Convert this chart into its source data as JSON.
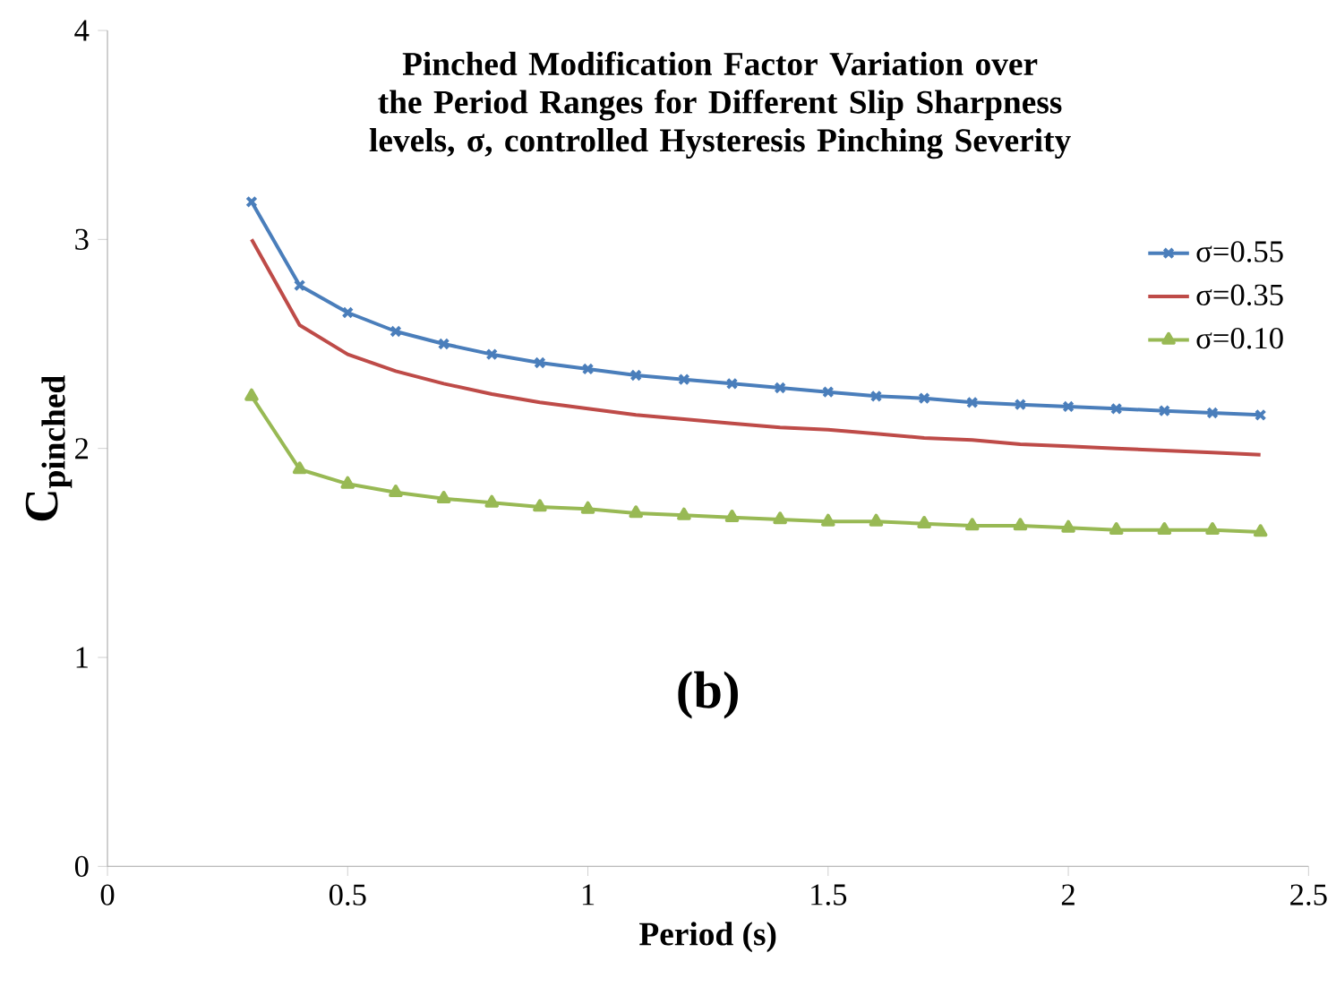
{
  "chart_data": {
    "type": "line",
    "title": "Pinched Modification Factor Variation over the Period Ranges for Different Slip Sharpness levels, σ, controlled Hysteresis Pinching Severity",
    "xlabel": "Period (s)",
    "ylabel": "C$_{pinched}$",
    "annotations": [
      "(b)"
    ],
    "x": [
      0.3,
      0.4,
      0.5,
      0.6,
      0.7,
      0.8,
      0.9,
      1.0,
      1.1,
      1.2,
      1.3,
      1.4,
      1.5,
      1.6,
      1.7,
      1.8,
      1.9,
      2.0,
      2.1,
      2.2,
      2.3,
      2.4
    ],
    "series": [
      {
        "name": "σ=0.55",
        "color": "#4a7ebb",
        "marker": "cross",
        "values": [
          3.18,
          2.78,
          2.65,
          2.56,
          2.5,
          2.45,
          2.41,
          2.38,
          2.35,
          2.33,
          2.31,
          2.29,
          2.27,
          2.25,
          2.24,
          2.22,
          2.21,
          2.2,
          2.19,
          2.18,
          2.17,
          2.16
        ]
      },
      {
        "name": "σ=0.35",
        "color": "#be4b48",
        "marker": "none",
        "values": [
          3.0,
          2.59,
          2.45,
          2.37,
          2.31,
          2.26,
          2.22,
          2.19,
          2.16,
          2.14,
          2.12,
          2.1,
          2.09,
          2.07,
          2.05,
          2.04,
          2.02,
          2.01,
          2.0,
          1.99,
          1.98,
          1.97
        ]
      },
      {
        "name": "σ=0.10",
        "color": "#98b954",
        "marker": "triangle",
        "values": [
          2.25,
          1.9,
          1.83,
          1.79,
          1.76,
          1.74,
          1.72,
          1.71,
          1.69,
          1.68,
          1.67,
          1.66,
          1.65,
          1.65,
          1.64,
          1.63,
          1.63,
          1.62,
          1.61,
          1.61,
          1.61,
          1.6
        ]
      }
    ],
    "xlim": [
      0,
      2.5
    ],
    "ylim": [
      0,
      4
    ],
    "xticks": [
      0,
      0.5,
      1,
      1.5,
      2,
      2.5
    ],
    "yticks": [
      0,
      1,
      2,
      3,
      4
    ],
    "legend": "top right",
    "grid": false
  }
}
